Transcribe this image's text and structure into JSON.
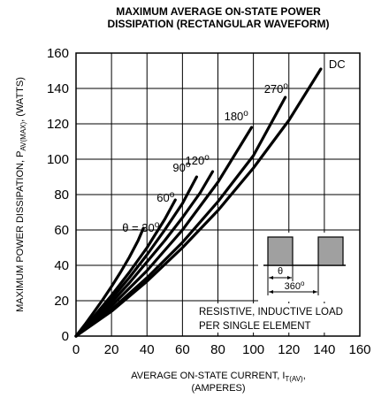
{
  "chart_data": {
    "type": "line",
    "title_line1": "MAXIMUM AVERAGE ON-STATE POWER",
    "title_line2": "DISSIPATION (RECTANGULAR WAVEFORM)",
    "ylabel_main": "MAXIMUM POWER DISSIPATION, P",
    "ylabel_sub": "AV(MAX)",
    "ylabel_tail": ", (WATTS)",
    "xlabel_main": "AVERAGE ON-STATE  CURRENT, I",
    "xlabel_sub": "T(AV)",
    "xlabel_tail": ",",
    "xlabel_line2": "(AMPERES)",
    "xlim": [
      0,
      160
    ],
    "ylim": [
      0,
      160
    ],
    "xticks": [
      0,
      20,
      40,
      60,
      80,
      100,
      120,
      140,
      160
    ],
    "yticks": [
      0,
      20,
      40,
      60,
      80,
      100,
      120,
      140,
      160
    ],
    "grid": true,
    "series": [
      {
        "name": "θ = 30",
        "sup": "o",
        "x": [
          0,
          5,
          10,
          15,
          20,
          25,
          30,
          35,
          38
        ],
        "y": [
          0,
          6.5,
          13.5,
          20.5,
          28,
          36,
          44.5,
          54,
          61
        ]
      },
      {
        "name": "60",
        "sup": "o",
        "x": [
          0,
          10,
          20,
          30,
          40,
          50,
          56
        ],
        "y": [
          0,
          11,
          23,
          36,
          50,
          66,
          77
        ]
      },
      {
        "name": "90",
        "sup": "o",
        "x": [
          0,
          10,
          20,
          30,
          40,
          50,
          60,
          68
        ],
        "y": [
          0,
          10,
          21,
          33,
          46,
          60,
          75,
          90
        ]
      },
      {
        "name": "120",
        "sup": "o",
        "x": [
          0,
          10,
          20,
          30,
          40,
          50,
          60,
          70,
          77
        ],
        "y": [
          0,
          9,
          19,
          30,
          42,
          54,
          67,
          81,
          93
        ]
      },
      {
        "name": "180",
        "sup": "o",
        "x": [
          0,
          20,
          40,
          60,
          80,
          99
        ],
        "y": [
          0,
          17,
          37,
          60,
          87,
          118
        ]
      },
      {
        "name": "270",
        "sup": "o",
        "x": [
          0,
          20,
          40,
          60,
          80,
          100,
          118
        ],
        "y": [
          0,
          15,
          33,
          53,
          76,
          102,
          135
        ]
      },
      {
        "name": "DC",
        "x": [
          0,
          20,
          40,
          60,
          80,
          100,
          120,
          138
        ],
        "y": [
          0,
          14,
          31,
          50,
          71,
          95,
          122,
          151
        ]
      }
    ],
    "inset": {
      "theta_label": "θ",
      "period_label": "360",
      "period_sup": "o"
    },
    "note_line1": "RESISTIVE, INDUCTIVE LOAD",
    "note_line2": "PER SINGLE ELEMENT"
  }
}
